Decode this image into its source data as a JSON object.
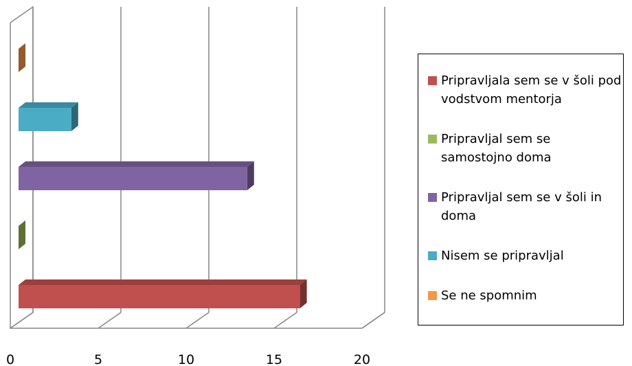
{
  "chart_data": {
    "type": "bar3d-horizontal",
    "categories": [
      null
    ],
    "series": [
      {
        "name": "Pripravljala sem se v šoli pod vodstvom mentorja",
        "color": "#c0504d",
        "values": [
          16
        ]
      },
      {
        "name": "Pripravljal sem se samostojno doma",
        "color": "#9bbb59",
        "values": [
          0
        ]
      },
      {
        "name": "Pripravljal sem se v šoli in doma",
        "color": "#8064a2",
        "values": [
          13
        ]
      },
      {
        "name": "Nisem se pripravljal",
        "color": "#4bacc6",
        "values": [
          3
        ]
      },
      {
        "name": "Se ne spomnim",
        "color": "#f79646",
        "values": [
          0
        ]
      }
    ],
    "xlim": [
      0,
      20
    ],
    "xticks": [
      0,
      5,
      10,
      15,
      20
    ],
    "grid": true,
    "legend": "right"
  }
}
